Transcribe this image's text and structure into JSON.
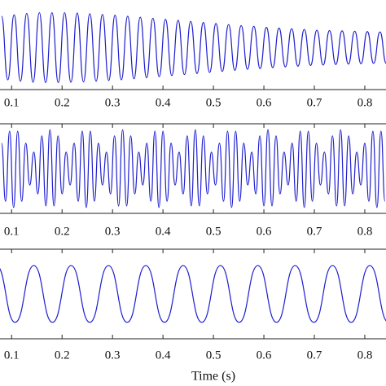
{
  "chart_data": [
    {
      "type": "line",
      "color": "#1f1fd0",
      "xlim": [
        0.077,
        0.842
      ],
      "ylim": [
        -1.2,
        1.2
      ],
      "xticks": [
        0.1,
        0.2,
        0.3,
        0.4,
        0.5,
        0.6,
        0.7,
        0.8
      ],
      "x": [
        0.08,
        0.0925,
        0.105,
        0.1175,
        0.13,
        0.1425,
        0.155,
        0.1675,
        0.18,
        0.1925,
        0.205,
        0.2175,
        0.23,
        0.2425,
        0.255,
        0.2675,
        0.28,
        0.2925,
        0.305,
        0.3175,
        0.33,
        0.3425,
        0.355,
        0.3675,
        0.38,
        0.3925,
        0.405,
        0.4175,
        0.43,
        0.4425,
        0.455,
        0.4675,
        0.48,
        0.4925,
        0.505,
        0.5175,
        0.53,
        0.5425,
        0.555,
        0.5675,
        0.58,
        0.5925,
        0.605,
        0.6175,
        0.63,
        0.6425,
        0.655,
        0.6675,
        0.68,
        0.6925,
        0.705,
        0.7175,
        0.73,
        0.7425,
        0.755,
        0.7675,
        0.78,
        0.7925,
        0.805,
        0.8175,
        0.83,
        0.8425
      ],
      "values": [
        0.9,
        -0.92,
        0.94,
        -0.96,
        0.98,
        -0.99,
        1.0,
        -1.0,
        1.0,
        -1.0,
        1.0,
        -0.99,
        0.99,
        -0.98,
        0.97,
        -0.96,
        0.95,
        -0.94,
        0.93,
        -0.92,
        0.9,
        -0.89,
        0.87,
        -0.86,
        0.84,
        -0.83,
        0.81,
        -0.8,
        0.78,
        -0.77,
        0.75,
        -0.74,
        0.72,
        -0.71,
        0.69,
        -0.68,
        0.66,
        -0.65,
        0.63,
        -0.62,
        0.61,
        -0.6,
        0.58,
        -0.57,
        0.56,
        -0.55,
        0.54,
        -0.53,
        0.52,
        -0.51,
        0.5,
        -0.5,
        0.49,
        -0.48,
        0.48,
        -0.47,
        0.47,
        -0.46,
        0.46,
        -0.45,
        0.45,
        -0.45
      ]
    },
    {
      "type": "line",
      "color": "#1f1fd0",
      "xlim": [
        0.077,
        0.842
      ],
      "ylim": [
        -1.15,
        1.15
      ],
      "xticks": [
        0.1,
        0.2,
        0.3,
        0.4,
        0.5,
        0.6,
        0.7,
        0.8
      ],
      "x": [
        0.08,
        0.088,
        0.096,
        0.104,
        0.112,
        0.12,
        0.128,
        0.136,
        0.144,
        0.152,
        0.16,
        0.168,
        0.176,
        0.184,
        0.192,
        0.2,
        0.208,
        0.216,
        0.224,
        0.232,
        0.24,
        0.248,
        0.256,
        0.264,
        0.272,
        0.28,
        0.288,
        0.296,
        0.304,
        0.312,
        0.32,
        0.328,
        0.336,
        0.344,
        0.352,
        0.36,
        0.368,
        0.376,
        0.384,
        0.392,
        0.4,
        0.408,
        0.416,
        0.424,
        0.432,
        0.44,
        0.448,
        0.456,
        0.464,
        0.472,
        0.48,
        0.488,
        0.496,
        0.504,
        0.512,
        0.52,
        0.528,
        0.536,
        0.544,
        0.552,
        0.56,
        0.568,
        0.576,
        0.584,
        0.592,
        0.6,
        0.608,
        0.616,
        0.624,
        0.632,
        0.64,
        0.648,
        0.656,
        0.664,
        0.672,
        0.68,
        0.688,
        0.696,
        0.704,
        0.712,
        0.72,
        0.728,
        0.736,
        0.744,
        0.752,
        0.76,
        0.768,
        0.776,
        0.784,
        0.792,
        0.8,
        0.808,
        0.816,
        0.824,
        0.832,
        0.84
      ],
      "values": [
        0.65,
        -0.84,
        0.96,
        -1.0,
        0.96,
        -0.84,
        0.65,
        -0.42,
        0.42,
        -0.65,
        0.84,
        -0.96,
        1.0,
        -0.96,
        0.84,
        -0.65,
        0.42,
        -0.42,
        0.65,
        -0.84,
        0.96,
        -1.0,
        0.96,
        -0.84,
        0.65,
        -0.42,
        0.42,
        -0.65,
        0.84,
        -0.96,
        1.0,
        -0.96,
        0.84,
        -0.65,
        0.42,
        -0.42,
        0.65,
        -0.84,
        0.96,
        -1.0,
        0.96,
        -0.84,
        0.65,
        -0.42,
        0.42,
        -0.65,
        0.84,
        -0.96,
        1.0,
        -0.96,
        0.84,
        -0.65,
        0.42,
        -0.42,
        0.65,
        -0.84,
        0.96,
        -1.0,
        0.96,
        -0.84,
        0.65,
        -0.42,
        0.42,
        -0.65,
        0.84,
        -0.96,
        1.0,
        -0.96,
        0.84,
        -0.65,
        0.42,
        -0.42,
        0.65,
        -0.84,
        0.96,
        -1.0,
        0.96,
        -0.84,
        0.65,
        -0.42,
        0.42,
        -0.65,
        0.84,
        -0.96,
        1.0,
        -0.96,
        0.84,
        -0.65,
        0.42,
        -0.42,
        0.65,
        -0.84,
        0.96,
        -1.0,
        0.96,
        -0.84
      ]
    },
    {
      "type": "line",
      "color": "#1f1fd0",
      "xlim": [
        0.077,
        0.842
      ],
      "ylim": [
        -1.5,
        1.5
      ],
      "xticks": [
        0.1,
        0.2,
        0.3,
        0.4,
        0.5,
        0.6,
        0.7,
        0.8
      ],
      "xlabel": "Time (s)",
      "x": [
        0.07,
        0.107,
        0.144,
        0.181,
        0.218,
        0.255,
        0.292,
        0.329,
        0.366,
        0.403,
        0.44,
        0.477,
        0.514,
        0.551,
        0.588,
        0.625,
        0.662,
        0.699,
        0.736,
        0.773,
        0.81,
        0.847
      ],
      "values": [
        0.95,
        -0.95,
        0.95,
        -0.95,
        0.95,
        -0.95,
        0.95,
        -0.95,
        0.95,
        -0.95,
        0.95,
        -0.95,
        0.95,
        -0.95,
        0.95,
        -0.95,
        0.95,
        -0.95,
        0.95,
        -0.95,
        0.95,
        -0.95
      ]
    }
  ]
}
